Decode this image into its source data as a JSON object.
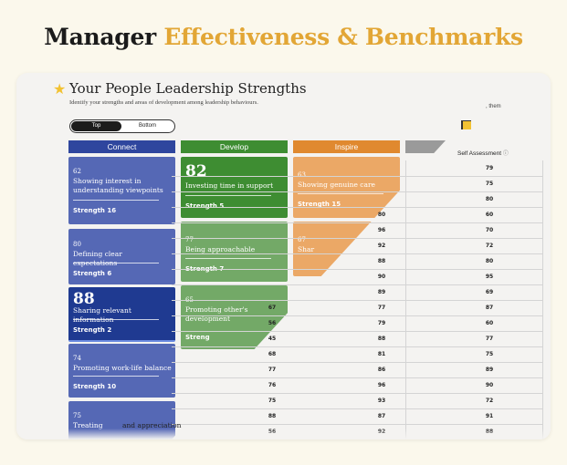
{
  "headline": {
    "part1": "Manager",
    "part2": "Effectiveness & Benchmarks"
  },
  "colors": {
    "connect": "#2f469e",
    "develop": "#3e8d32",
    "inspire": "#e0892f",
    "gray": "#9a9a9a",
    "accent": "#e2a635"
  },
  "card": {
    "title": "Your People Leadership Strengths",
    "subtitle": "Identify your strengths and areas of development among leadership behaviours.",
    "corner_note": ", them",
    "toggle": {
      "top": "Top",
      "bottom": "Bottom"
    },
    "columns": {
      "connect": "Connect",
      "develop": "Develop",
      "inspire": "Inspire"
    },
    "self_assessment": "Self Assessment",
    "info_glyph": "ⓘ"
  },
  "tiles": {
    "connect": [
      {
        "score": "62",
        "label": "Showing interest in understanding viewpoints",
        "strength": "Strength 16"
      },
      {
        "score": "80",
        "label": "Defining clear expectations",
        "strength": "Strength 6"
      },
      {
        "score": "88",
        "label": "Sharing relevant information",
        "strength": "Strength 2"
      },
      {
        "score": "74",
        "label": "Promoting work-life balance",
        "strength": "Strength 10"
      },
      {
        "score": "75",
        "label": "Treating",
        "label_tail": "and appreciation"
      }
    ],
    "develop": [
      {
        "score": "82",
        "label": "Investing time in support",
        "strength": "Strength 5"
      },
      {
        "score": "77",
        "label": "Being approachable",
        "strength": "Strength 7"
      },
      {
        "score": "65",
        "label": "Promoting other's development",
        "strength": "Streng"
      }
    ],
    "inspire": [
      {
        "score": "63",
        "label": "Showing genuine care",
        "strength": "Strength 15"
      },
      {
        "score": "67",
        "label": "Shar"
      }
    ]
  },
  "table": {
    "rows": [
      [
        "",
        "",
        "",
        "79"
      ],
      [
        "",
        "",
        "",
        "75"
      ],
      [
        "",
        "",
        "",
        "80"
      ],
      [
        "",
        "",
        "80",
        "60"
      ],
      [
        "",
        "",
        "96",
        "70"
      ],
      [
        "",
        "",
        "92",
        "72"
      ],
      [
        "",
        "",
        "88",
        "80"
      ],
      [
        "",
        "",
        "90",
        "95"
      ],
      [
        "",
        "",
        "89",
        "69"
      ],
      [
        "",
        "67",
        "77",
        "87"
      ],
      [
        "",
        "56",
        "79",
        "60"
      ],
      [
        "",
        "45",
        "88",
        "77"
      ],
      [
        "",
        "68",
        "81",
        "75"
      ],
      [
        "",
        "77",
        "86",
        "89"
      ],
      [
        "",
        "76",
        "96",
        "90"
      ],
      [
        "",
        "75",
        "93",
        "72"
      ],
      [
        "",
        "88",
        "87",
        "91"
      ],
      [
        "",
        "56",
        "92",
        "88"
      ]
    ]
  }
}
